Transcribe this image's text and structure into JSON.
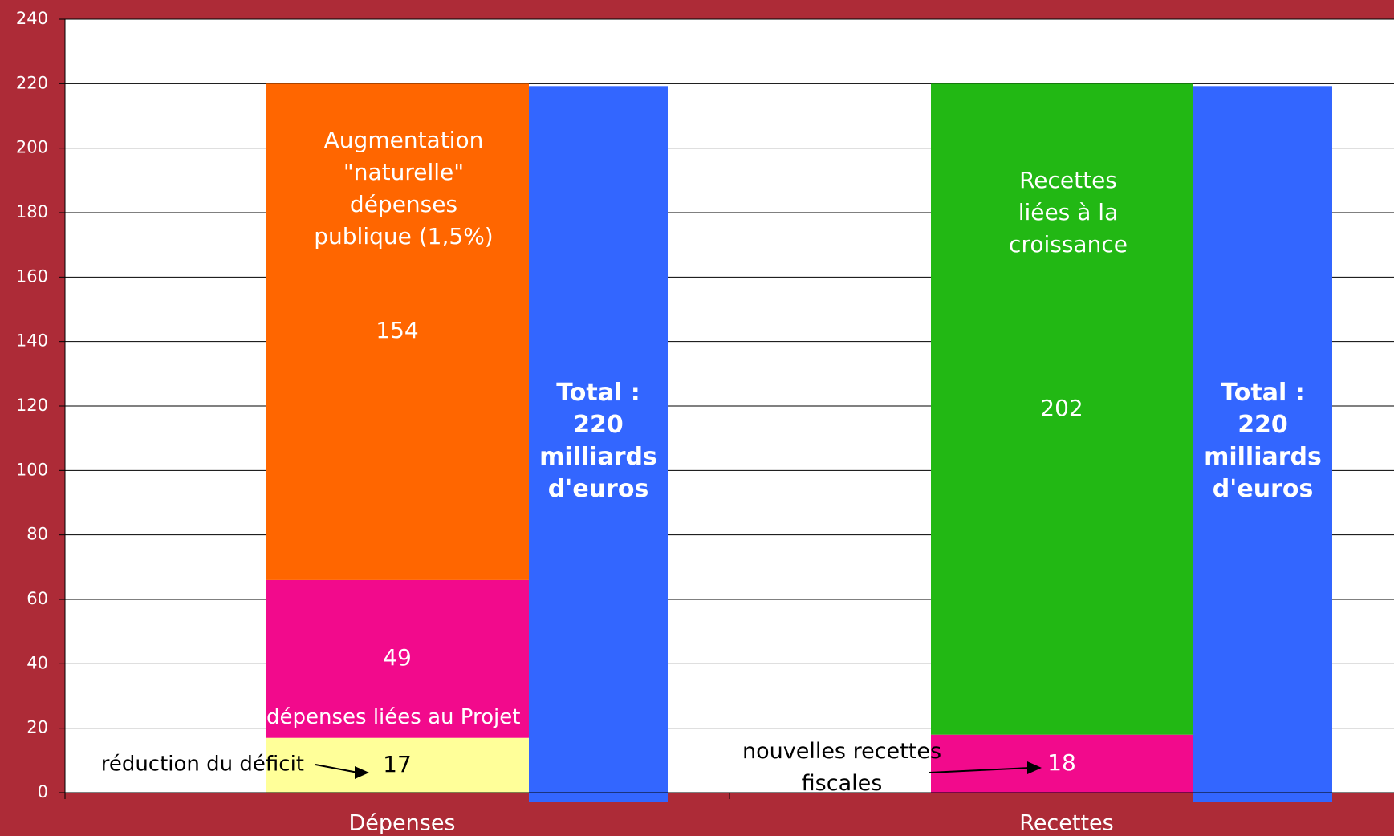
{
  "chart_data": {
    "type": "stacked_bar",
    "ylim": [
      0,
      240
    ],
    "yticks": [
      0,
      20,
      40,
      60,
      80,
      100,
      120,
      140,
      160,
      180,
      200,
      220,
      240
    ],
    "grid": true,
    "background": "#ad2b37",
    "plot_color": "#ffffff",
    "total_color": "#3366ff",
    "stacks": [
      {
        "category": "Dépenses",
        "segments": [
          {
            "name": "réduction du déficit",
            "value": 17,
            "color": "#ffff99"
          },
          {
            "name": "dépenses liées au Projet",
            "value": 49,
            "color": "#f20a8c"
          },
          {
            "name": "Augmentation \"naturelle\" dépenses publique (1,5%)",
            "value": 154,
            "color": "#ff6600"
          }
        ],
        "total": 220,
        "total_label": "Total : 220 milliards d'euros"
      },
      {
        "category": "Recettes",
        "segments": [
          {
            "name": "nouvelles recettes fiscales",
            "value": 18,
            "color": "#f20a8c"
          },
          {
            "name": "Recettes liées à la croissance",
            "value": 202,
            "color": "#22b814"
          }
        ],
        "total": 220,
        "total_label": "Total : 220 milliards d'euros"
      }
    ]
  }
}
